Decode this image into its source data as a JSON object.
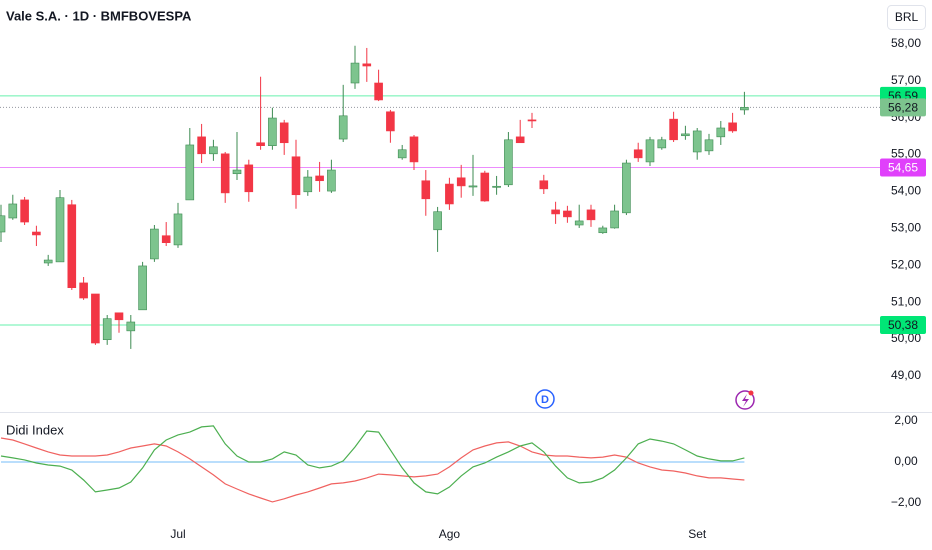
{
  "chart_data": [
    {
      "type": "candlestick",
      "title": "Vale S.A. · 1D · BMFBOVESPA",
      "currency": "BRL",
      "categories": [
        null,
        null,
        null,
        null,
        null,
        null,
        null,
        null,
        null,
        null,
        null,
        null,
        null,
        null,
        null,
        "Jul",
        null,
        null,
        null,
        null,
        null,
        null,
        null,
        null,
        null,
        null,
        null,
        null,
        null,
        null,
        null,
        null,
        null,
        null,
        null,
        null,
        null,
        null,
        "Ago",
        null,
        null,
        null,
        null,
        null,
        null,
        null,
        null,
        null,
        null,
        null,
        null,
        null,
        null,
        null,
        null,
        null,
        null,
        null,
        null,
        "Set",
        null,
        null,
        null,
        null
      ],
      "open": [
        52.9,
        53.28,
        53.77,
        52.9,
        52.06,
        52.09,
        53.64,
        51.52,
        51.22,
        49.98,
        50.71,
        50.22,
        50.79,
        52.17,
        52.8,
        52.55,
        53.77,
        55.48,
        55.02,
        55.02,
        54.48,
        54.72,
        55.32,
        55.24,
        55.86,
        54.94,
        53.99,
        54.42,
        54.01,
        55.42,
        56.94,
        57.46,
        56.94,
        56.16,
        54.91,
        55.48,
        54.29,
        52.96,
        54.2,
        54.37,
        54.12,
        54.5,
        54.11,
        54.18,
        55.48,
        55.94,
        54.29,
        53.5,
        53.47,
        53.09,
        53.5,
        52.88,
        53.01,
        53.42,
        55.13,
        54.8,
        55.18,
        55.96,
        55.51,
        55.07,
        55.1,
        55.48,
        55.86,
        56.21
      ],
      "high": [
        53.64,
        53.91,
        53.85,
        53.07,
        52.28,
        54.04,
        53.77,
        51.68,
        51.22,
        50.65,
        50.71,
        50.65,
        52.09,
        53.09,
        53.17,
        53.69,
        55.72,
        55.83,
        55.4,
        55.07,
        55.61,
        54.86,
        57.11,
        56.27,
        55.94,
        55.4,
        54.58,
        54.8,
        54.86,
        56.89,
        57.95,
        57.89,
        57.3,
        56.21,
        55.26,
        55.53,
        54.58,
        53.58,
        54.37,
        54.72,
        54.99,
        54.56,
        54.42,
        55.61,
        55.94,
        56.13,
        54.45,
        53.72,
        53.61,
        53.64,
        53.64,
        53.07,
        53.64,
        54.86,
        55.32,
        55.48,
        55.48,
        56.16,
        55.78,
        55.72,
        55.56,
        55.91,
        56.13,
        56.7
      ],
      "low": [
        52.63,
        53.23,
        53.09,
        52.52,
        51.98,
        52.09,
        51.33,
        51.06,
        49.84,
        49.84,
        50.17,
        49.73,
        50.79,
        52.09,
        52.52,
        52.47,
        53.77,
        54.77,
        54.83,
        53.69,
        54.31,
        53.72,
        55.13,
        55.13,
        54.99,
        53.53,
        53.88,
        53.99,
        53.96,
        55.34,
        56.78,
        56.97,
        56.45,
        55.32,
        54.86,
        54.58,
        53.34,
        52.36,
        53.5,
        53.83,
        53.88,
        53.72,
        53.91,
        54.12,
        55.32,
        55.72,
        53.93,
        53.12,
        53.15,
        53.01,
        53.04,
        52.85,
        52.99,
        53.36,
        54.8,
        54.69,
        55.13,
        55.34,
        55.4,
        54.86,
        54.99,
        55.26,
        55.59,
        56.08
      ],
      "close": [
        53.34,
        53.66,
        53.17,
        52.82,
        52.14,
        53.83,
        51.39,
        51.11,
        49.89,
        50.55,
        50.52,
        50.46,
        51.98,
        52.98,
        52.61,
        53.39,
        55.26,
        55.02,
        55.21,
        53.96,
        54.58,
        53.99,
        55.24,
        55.99,
        55.32,
        53.91,
        54.39,
        54.29,
        54.58,
        56.05,
        57.48,
        57.4,
        56.48,
        55.64,
        55.13,
        54.8,
        53.8,
        53.45,
        53.66,
        54.15,
        54.15,
        53.74,
        54.14,
        55.4,
        55.32,
        55.91,
        54.07,
        53.39,
        53.31,
        53.2,
        53.23,
        53.01,
        53.47,
        54.77,
        54.91,
        55.4,
        55.4,
        55.4,
        55.56,
        55.64,
        55.4,
        55.72,
        55.64,
        56.28
      ],
      "up_color": "#7dc48e",
      "down_color": "#f23645",
      "ylim": [
        48.02,
        59.19
      ],
      "yticks": [
        {
          "value": 49,
          "label": "49,00"
        },
        {
          "value": 50,
          "label": "50,00"
        },
        {
          "value": 51,
          "label": "51,00"
        },
        {
          "value": 52,
          "label": "52,00"
        },
        {
          "value": 53,
          "label": "53,00"
        },
        {
          "value": 54,
          "label": "54,00"
        },
        {
          "value": 55,
          "label": "55,00"
        },
        {
          "value": 56,
          "label": "56,00"
        },
        {
          "value": 57,
          "label": "57,00"
        },
        {
          "value": 58,
          "label": "58,00"
        }
      ],
      "hlines": [
        {
          "value": 56.59,
          "label": "56,59",
          "color": "#00e676"
        },
        {
          "value": 54.65,
          "label": "54,65",
          "color": "#e040fb"
        },
        {
          "value": 50.38,
          "label": "50,38",
          "color": "#00e676"
        }
      ],
      "last_price": {
        "value": 56.28,
        "label": "56,28",
        "color": "#7dc48e"
      }
    },
    {
      "type": "line",
      "title": "Didi Index",
      "series": [
        {
          "color": "#90caf9",
          "values": [
            0,
            0,
            0,
            0,
            0,
            0,
            0,
            0,
            0,
            0,
            0,
            0,
            0,
            0,
            0,
            0,
            0,
            0,
            0,
            0,
            0,
            0,
            0,
            0,
            0,
            0,
            0,
            0,
            0,
            0,
            0,
            0,
            0,
            0,
            0,
            0,
            0,
            0,
            0,
            0,
            0,
            0,
            0,
            0,
            0,
            0,
            0,
            0,
            0,
            0,
            0,
            0,
            0,
            0,
            0,
            0,
            0,
            0,
            0,
            0,
            0,
            0,
            0,
            0
          ]
        },
        {
          "color": "#f06260",
          "values": [
            1.17,
            1.07,
            0.88,
            0.68,
            0.49,
            0.34,
            0.29,
            0.29,
            0.29,
            0.34,
            0.49,
            0.68,
            0.78,
            0.88,
            0.78,
            0.49,
            0.15,
            -0.24,
            -0.63,
            -1.07,
            -1.32,
            -1.56,
            -1.76,
            -1.95,
            -1.8,
            -1.61,
            -1.46,
            -1.27,
            -1.07,
            -1.02,
            -0.93,
            -0.78,
            -0.59,
            -0.63,
            -0.68,
            -0.73,
            -0.68,
            -0.59,
            -0.24,
            0.2,
            0.59,
            0.78,
            0.93,
            0.98,
            0.78,
            0.49,
            0.34,
            0.29,
            0.29,
            0.24,
            0.2,
            0.24,
            0.34,
            0.24,
            -0.05,
            -0.24,
            -0.39,
            -0.44,
            -0.54,
            -0.68,
            -0.78,
            -0.78,
            -0.83,
            -0.88
          ]
        },
        {
          "color": "#4caf50",
          "values": [
            0.29,
            0.2,
            0.1,
            -0.05,
            -0.15,
            -0.2,
            -0.39,
            -0.88,
            -1.46,
            -1.37,
            -1.27,
            -0.98,
            -0.29,
            0.59,
            1.07,
            1.32,
            1.46,
            1.71,
            1.76,
            0.88,
            0.29,
            0.0,
            0.0,
            0.15,
            0.49,
            0.34,
            -0.15,
            -0.29,
            -0.2,
            0.05,
            0.73,
            1.51,
            1.46,
            0.59,
            -0.29,
            -1.02,
            -1.46,
            -1.56,
            -1.22,
            -0.68,
            -0.24,
            -0.05,
            0.24,
            0.49,
            0.78,
            0.93,
            0.49,
            -0.2,
            -0.78,
            -1.02,
            -0.98,
            -0.78,
            -0.39,
            0.2,
            0.88,
            1.12,
            1.02,
            0.88,
            0.59,
            0.29,
            0.15,
            0.05,
            0.05,
            0.2
          ]
        }
      ],
      "ylim": [
        -2.93,
        2.39
      ],
      "yticks": [
        {
          "value": 2,
          "label": "2,00"
        },
        {
          "value": 0,
          "label": "0,00"
        },
        {
          "value": -2,
          "label": "−2,00"
        }
      ]
    }
  ]
}
